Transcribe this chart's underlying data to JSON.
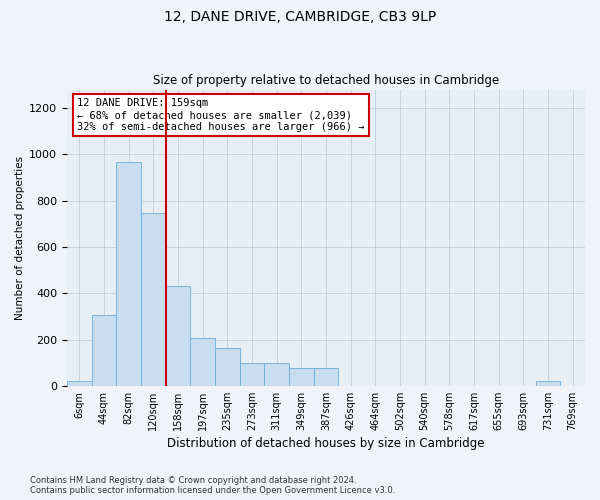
{
  "title": "12, DANE DRIVE, CAMBRIDGE, CB3 9LP",
  "subtitle": "Size of property relative to detached houses in Cambridge",
  "xlabel": "Distribution of detached houses by size in Cambridge",
  "ylabel": "Number of detached properties",
  "bar_color": "#c8ddf0",
  "bar_edge_color": "#6aaed6",
  "vline_color": "#cc0000",
  "annotation_text": "12 DANE DRIVE: 159sqm\n← 68% of detached houses are smaller (2,039)\n32% of semi-detached houses are larger (966) →",
  "annotation_box_color": "#ffffff",
  "annotation_box_edge": "#cc0000",
  "categories": [
    "6sqm",
    "44sqm",
    "82sqm",
    "120sqm",
    "158sqm",
    "197sqm",
    "235sqm",
    "273sqm",
    "311sqm",
    "349sqm",
    "387sqm",
    "426sqm",
    "464sqm",
    "502sqm",
    "540sqm",
    "578sqm",
    "617sqm",
    "655sqm",
    "693sqm",
    "731sqm",
    "769sqm"
  ],
  "bar_heights": [
    22,
    305,
    965,
    745,
    430,
    208,
    165,
    100,
    100,
    75,
    75,
    0,
    0,
    0,
    0,
    0,
    0,
    0,
    0,
    22,
    0
  ],
  "vline_after_index": 3,
  "ylim": [
    0,
    1280
  ],
  "yticks": [
    0,
    200,
    400,
    600,
    800,
    1000,
    1200
  ],
  "footer1": "Contains HM Land Registry data © Crown copyright and database right 2024.",
  "footer2": "Contains public sector information licensed under the Open Government Licence v3.0.",
  "background_color": "#f0f4f8",
  "plot_bg_color": "#e8eef5"
}
